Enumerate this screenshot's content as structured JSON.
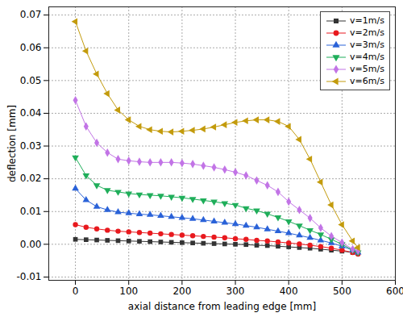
{
  "chart_data": {
    "type": "line",
    "x_label": "axial distance from leading edge [mm]",
    "y_label": "deflection [mm]",
    "xlim": [
      -50,
      600
    ],
    "ylim": [
      -0.011,
      0.0725
    ],
    "xticks": [
      0,
      100,
      200,
      300,
      400,
      500,
      600
    ],
    "yticks": [
      -0.01,
      {
        "value": 0,
        "label": "0.00"
      },
      0.01,
      0.02,
      0.03,
      0.04,
      0.05,
      0.06,
      0.07
    ],
    "grid": true,
    "legend": "upper right",
    "x": [
      0,
      20,
      40,
      60,
      80,
      100,
      120,
      140,
      160,
      180,
      200,
      220,
      240,
      260,
      280,
      300,
      320,
      340,
      360,
      380,
      400,
      420,
      440,
      460,
      480,
      500,
      520,
      530
    ],
    "series": [
      {
        "name": "v=1m/s",
        "color": "#333333",
        "marker": "square",
        "line_style": "solid",
        "values": [
          0.0015,
          0.0014,
          0.0013,
          0.0012,
          0.0011,
          0.001,
          0.0009,
          0.0008,
          0.0007,
          0.0006,
          0.0005,
          0.0004,
          0.0003,
          0.0002,
          0.0001,
          0,
          -0.0001,
          -0.0003,
          -0.0004,
          -0.0006,
          -0.0008,
          -0.001,
          -0.0012,
          -0.0015,
          -0.0018,
          -0.0021,
          -0.0025,
          -0.0027
        ]
      },
      {
        "name": "v=2m/s",
        "color": "#e8191e",
        "marker": "circle",
        "line_style": "solid",
        "values": [
          0.006,
          0.0052,
          0.0047,
          0.0043,
          0.004,
          0.0038,
          0.0036,
          0.0034,
          0.0032,
          0.003,
          0.0028,
          0.0026,
          0.0024,
          0.0022,
          0.002,
          0.0017,
          0.0015,
          0.0012,
          0.001,
          0.0007,
          0.0004,
          0.0001,
          -0.0003,
          -0.0007,
          -0.0012,
          -0.0018,
          -0.0025,
          -0.003
        ]
      },
      {
        "name": "v=3m/s",
        "color": "#2a62d8",
        "marker": "triangle-up",
        "line_style": "solid",
        "values": [
          0.017,
          0.0135,
          0.0115,
          0.0105,
          0.0098,
          0.0095,
          0.0092,
          0.009,
          0.0087,
          0.0084,
          0.0081,
          0.0078,
          0.0074,
          0.007,
          0.0066,
          0.0062,
          0.0057,
          0.0052,
          0.0046,
          0.004,
          0.0034,
          0.0027,
          0.002,
          0.0012,
          0.0004,
          -0.0006,
          -0.0018,
          -0.0025
        ]
      },
      {
        "name": "v=4m/s",
        "color": "#1fae5a",
        "marker": "triangle-down",
        "line_style": "solid",
        "values": [
          0.0265,
          0.021,
          0.018,
          0.0165,
          0.016,
          0.0155,
          0.0152,
          0.015,
          0.0148,
          0.0145,
          0.0142,
          0.0138,
          0.0134,
          0.013,
          0.0125,
          0.012,
          0.011,
          0.0103,
          0.0093,
          0.0082,
          0.007,
          0.0057,
          0.0043,
          0.003,
          0.0015,
          0,
          -0.0018,
          -0.0025
        ]
      },
      {
        "name": "v=5m/s",
        "color": "#c274e6",
        "marker": "diamond",
        "line_style": "solid",
        "values": [
          0.044,
          0.036,
          0.031,
          0.028,
          0.026,
          0.0255,
          0.0252,
          0.025,
          0.025,
          0.025,
          0.0248,
          0.0245,
          0.024,
          0.0235,
          0.0228,
          0.022,
          0.021,
          0.0195,
          0.018,
          0.016,
          0.013,
          0.0105,
          0.008,
          0.005,
          0.0025,
          0.0005,
          -0.0015,
          -0.002
        ]
      },
      {
        "name": "v=6m/s",
        "color": "#c39b0c",
        "marker": "triangle-left",
        "line_style": "solid",
        "values": [
          0.068,
          0.059,
          0.052,
          0.046,
          0.041,
          0.038,
          0.036,
          0.035,
          0.0345,
          0.0343,
          0.0345,
          0.0348,
          0.0352,
          0.0358,
          0.0365,
          0.0372,
          0.0377,
          0.038,
          0.038,
          0.0375,
          0.036,
          0.032,
          0.026,
          0.019,
          0.012,
          0.006,
          0.001,
          -0.001
        ]
      }
    ]
  }
}
